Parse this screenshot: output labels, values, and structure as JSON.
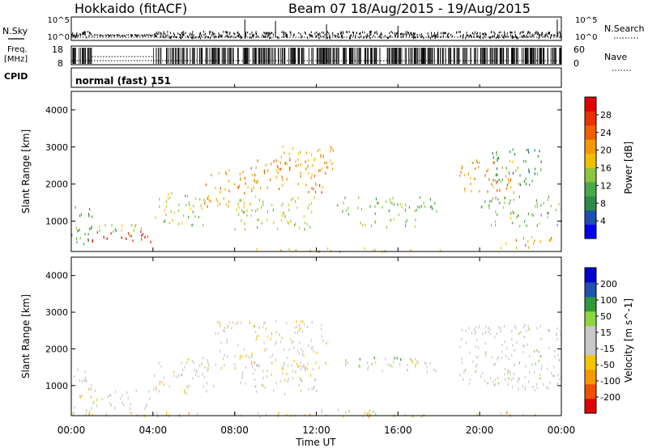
{
  "header": {
    "station": "Hokkaido (fitACF)",
    "beam_date": "Beam 07  18/Aug/2015 - 19/Aug/2015"
  },
  "strip": {
    "nsky_label": "N.Sky",
    "nsearch_label": "N.Search",
    "nsky_ticks": [
      "10^5",
      "10^0"
    ],
    "nsearch_ticks": [
      "10^5",
      "10^0"
    ],
    "freq_label_1": "Freq.",
    "freq_label_2": "[MHz]",
    "freq_ticks": [
      "18",
      "8"
    ],
    "nave_label": "Nave",
    "nave_ticks": [
      "60",
      "0"
    ],
    "cpid_label": "CPID",
    "cpid_value": "normal (fast) 151"
  },
  "axis": {
    "ylabel": "Slant Range [km]",
    "y_ticks": [
      "1000",
      "2000",
      "3000",
      "4000"
    ],
    "xlabel": "Time UT",
    "x_ticks": [
      "00:00",
      "04:00",
      "08:00",
      "12:00",
      "16:00",
      "20:00",
      "00:00"
    ]
  },
  "colors": {
    "power_scale": [
      "#0000ee",
      "#1f4fb0",
      "#2f8a4a",
      "#4ba84a",
      "#8cc63f",
      "#f0c000",
      "#f39a00",
      "#f06000",
      "#e83000",
      "#e00000"
    ],
    "velocity_scale": [
      "#e00000",
      "#f05000",
      "#f39a00",
      "#f5c400",
      "#c8c8c8",
      "#c8c8c8",
      "#8cd640",
      "#2f9a3a",
      "#2050b0",
      "#0000d0"
    ]
  },
  "chart_data": [
    {
      "type": "heatmap",
      "title": "Power",
      "xlabel": "Time UT",
      "ylabel": "Slant Range [km]",
      "xlim": [
        0,
        24
      ],
      "ylim": [
        180,
        4500
      ],
      "colorbar_label": "Power [dB]",
      "colorbar_ticks": [
        "4",
        "8",
        "12",
        "16",
        "20",
        "24",
        "28"
      ],
      "colorbar_range": [
        0,
        30
      ],
      "regions": [
        {
          "t0": 0.0,
          "t1": 1.0,
          "r0": 300,
          "r1": 1550,
          "val": 10
        },
        {
          "t0": 1.0,
          "t1": 4.0,
          "r0": 400,
          "r1": 750,
          "val": 27
        },
        {
          "t0": 1.0,
          "t1": 4.0,
          "r0": 750,
          "r1": 1000,
          "val": 13
        },
        {
          "t0": 4.0,
          "t1": 6.5,
          "r0": 900,
          "r1": 1800,
          "val": 14
        },
        {
          "t0": 6.5,
          "t1": 9.0,
          "r0": 1400,
          "r1": 2500,
          "val": 19
        },
        {
          "t0": 9.0,
          "t1": 12.5,
          "r0": 1800,
          "r1": 2700,
          "val": 21
        },
        {
          "t0": 10.0,
          "t1": 13.0,
          "r0": 2400,
          "r1": 3100,
          "val": 18
        },
        {
          "t0": 8.0,
          "t1": 12.0,
          "r0": 800,
          "r1": 1700,
          "val": 15
        },
        {
          "t0": 13.0,
          "t1": 18.0,
          "r0": 1200,
          "r1": 1700,
          "val": 12
        },
        {
          "t0": 14.0,
          "t1": 17.0,
          "r0": 800,
          "r1": 1100,
          "val": 14
        },
        {
          "t0": 19.0,
          "t1": 22.0,
          "r0": 1800,
          "r1": 2700,
          "val": 20
        },
        {
          "t0": 20.0,
          "t1": 24.0,
          "r0": 900,
          "r1": 1700,
          "val": 12
        },
        {
          "t0": 21.0,
          "t1": 24.0,
          "r0": 300,
          "r1": 600,
          "val": 19
        },
        {
          "t0": 9.0,
          "t1": 18.5,
          "r0": 200,
          "r1": 300,
          "val": 17
        },
        {
          "t0": 20.5,
          "t1": 23.0,
          "r0": 2000,
          "r1": 3000,
          "val": 9
        }
      ]
    },
    {
      "type": "heatmap",
      "title": "Velocity",
      "xlabel": "Time UT",
      "ylabel": "Slant Range [km]",
      "xlim": [
        0,
        24
      ],
      "ylim": [
        180,
        4500
      ],
      "colorbar_label": "Velocity [m s^-1]",
      "colorbar_ticks": [
        "-200",
        "-100",
        "-50",
        "-15",
        "15",
        "50",
        "100",
        "200"
      ],
      "colorbar_range": [
        -250,
        250
      ],
      "regions": [
        {
          "t0": 0.0,
          "t1": 1.0,
          "r0": 300,
          "r1": 1500,
          "val": -5
        },
        {
          "t0": 1.0,
          "t1": 4.0,
          "r0": 400,
          "r1": 900,
          "val": 0
        },
        {
          "t0": 4.0,
          "t1": 7.0,
          "r0": 800,
          "r1": 1800,
          "val": -20
        },
        {
          "t0": 7.0,
          "t1": 12.5,
          "r0": 1500,
          "r1": 2800,
          "val": -30
        },
        {
          "t0": 8.0,
          "t1": 12.0,
          "r0": 800,
          "r1": 1600,
          "val": -10
        },
        {
          "t0": 13.0,
          "t1": 17.0,
          "r0": 1400,
          "r1": 1800,
          "val": 60
        },
        {
          "t0": 16.0,
          "t1": 18.0,
          "r0": 1400,
          "r1": 1700,
          "val": -40
        },
        {
          "t0": 19.0,
          "t1": 24.0,
          "r0": 900,
          "r1": 2700,
          "val": 5
        },
        {
          "t0": 0.0,
          "t1": 24.0,
          "r0": 180,
          "r1": 300,
          "val": -70
        },
        {
          "t0": 12.0,
          "t1": 15.0,
          "r0": 200,
          "r1": 400,
          "val": 40
        }
      ]
    }
  ]
}
